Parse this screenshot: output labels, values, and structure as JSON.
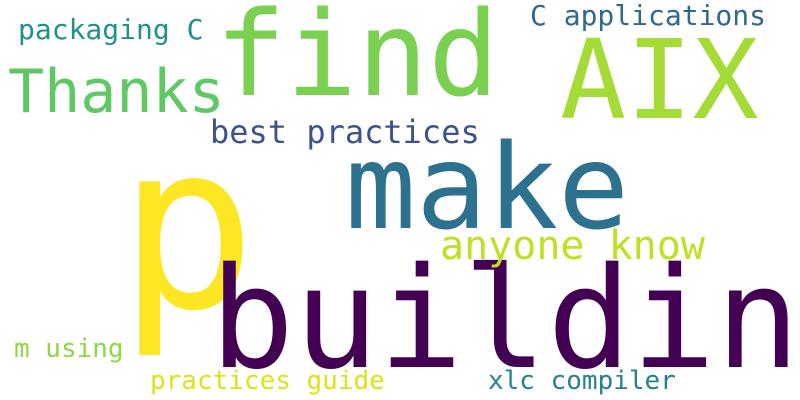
{
  "words": [
    {
      "text": "p",
      "color": "#fde725"
    },
    {
      "text": "building",
      "color": "#440154"
    },
    {
      "text": "find",
      "color": "#7ad151"
    },
    {
      "text": "make",
      "color": "#2c728e"
    },
    {
      "text": "AIX",
      "color": "#a5db36"
    },
    {
      "text": "Thanks",
      "color": "#5ec962"
    },
    {
      "text": "anyone know",
      "color": "#c2df23"
    },
    {
      "text": "best practices",
      "color": "#3b528b"
    },
    {
      "text": "C applications",
      "color": "#31688e"
    },
    {
      "text": "packaging C",
      "color": "#21918c"
    },
    {
      "text": "xlc compiler",
      "color": "#26828e"
    },
    {
      "text": "practices guide",
      "color": "#dde318"
    },
    {
      "text": "m using",
      "color": "#8fd744"
    }
  ]
}
